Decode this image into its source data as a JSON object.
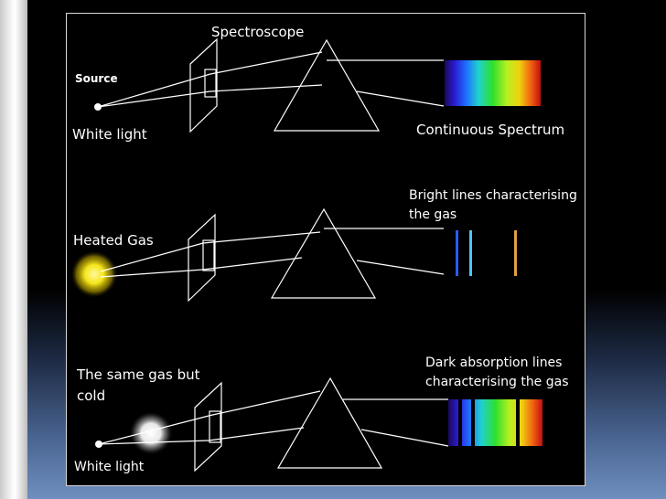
{
  "labels": {
    "spectroscope": "Spectroscope",
    "source": "Source",
    "white_light_1": "White light",
    "continuous_spectrum": "Continuous Spectrum",
    "bright_lines_1": "Bright lines characterising",
    "bright_lines_2": "the gas",
    "heated_gas": "Heated Gas",
    "same_gas_1": "The same gas but",
    "same_gas_2": "cold",
    "dark_lines_1": "Dark absorption lines",
    "dark_lines_2": "characterising the gas",
    "white_light_2": "White light"
  },
  "colors": {
    "background": "#000000",
    "lines": "#ffffff",
    "gas_glow": "#f5e51a",
    "cold_gas_glow": "#ffffff",
    "emission_blue": "#2b5bff",
    "emission_cyan": "#4cc7ff",
    "emission_orange": "#e0a040"
  }
}
